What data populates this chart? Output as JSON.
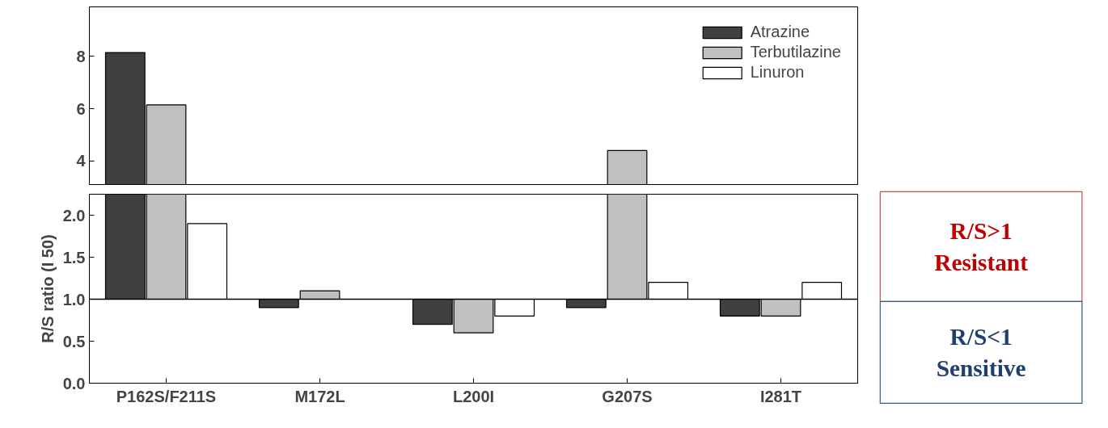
{
  "chart_data": [
    {
      "type": "bar",
      "categories": [
        null,
        null,
        null,
        null,
        null
      ],
      "series": [
        {
          "name": "Atrazine",
          "color": "#404040",
          "base": [
            1,
            1,
            1,
            1,
            1
          ],
          "values": [
            7.15,
            -0.1,
            -0.3,
            -0.1,
            -0.2
          ]
        },
        {
          "name": "Terbutilazine",
          "color": "#c0c0c0",
          "base": [
            1,
            1,
            1,
            1,
            1
          ],
          "values": [
            5.15,
            0.1,
            -0.4,
            3.4,
            -0.2
          ]
        },
        {
          "name": "Linuron",
          "color": "#ffffff",
          "base": [
            1,
            null,
            1,
            1,
            1
          ],
          "values": [
            0.9,
            null,
            -0.2,
            0.2,
            0.2
          ]
        }
      ],
      "ylim": [
        3.1,
        9.9
      ],
      "yticks": [
        4,
        6,
        8
      ],
      "tick_labels": "y",
      "legend": "top right"
    },
    {
      "type": "bar",
      "categories": [
        "P162S/F211S",
        "M172L",
        "L200I",
        "G207S",
        "I281T"
      ],
      "series": [
        {
          "color": "#404040",
          "base": [
            1,
            1,
            1,
            1,
            1
          ],
          "values": [
            7.15,
            -0.1,
            -0.3,
            -0.1,
            -0.2
          ]
        },
        {
          "color": "#c0c0c0",
          "base": [
            1,
            1,
            1,
            1,
            1
          ],
          "values": [
            5.15,
            0.1,
            -0.4,
            3.4,
            -0.2
          ]
        },
        {
          "color": "#ffffff",
          "base": [
            1,
            null,
            1,
            1,
            1
          ],
          "values": [
            0.9,
            null,
            -0.2,
            0.2,
            0.2
          ]
        }
      ],
      "ylim": [
        0,
        2.25
      ],
      "yticks": [
        {
          "value": 0,
          "label": "0.0"
        },
        {
          "value": 0.5,
          "label": "0.5"
        },
        {
          "value": 1,
          "label": "1.0"
        },
        {
          "value": 1.5,
          "label": "1.5"
        },
        {
          "value": 2,
          "label": "2.0"
        }
      ],
      "ylabel": "R/S ratio (I 50)",
      "ref_lines": [
        {
          "axis": "y",
          "value": 1,
          "color": "#000000"
        }
      ],
      "annotations": [
        "R/S>1\nResistant",
        "R/S<1\nSensitive"
      ]
    }
  ]
}
